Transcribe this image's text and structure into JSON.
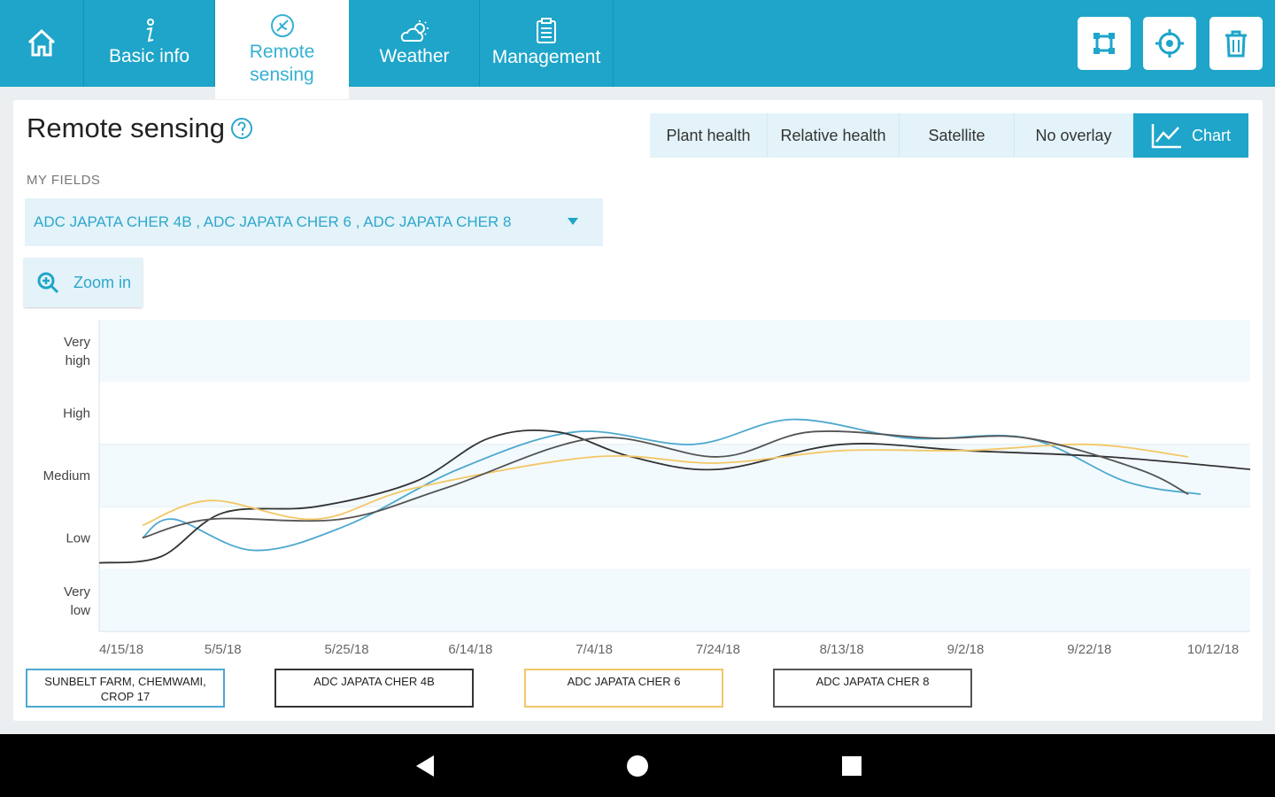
{
  "tabs": [
    {
      "label": "Basic info"
    },
    {
      "label": "Remote sensing"
    },
    {
      "label": "Weather"
    },
    {
      "label": "Management"
    }
  ],
  "page": {
    "title": "Remote sensing",
    "my_fields_label": "MY FIELDS",
    "fields_selected": "ADC JAPATA CHER 4B , ADC JAPATA CHER 6 , ADC JAPATA CHER 8",
    "zoom_label": "Zoom in"
  },
  "overlay_options": [
    "Plant health",
    "Relative health",
    "Satellite",
    "No overlay",
    "Chart"
  ],
  "overlay_selected": "Chart",
  "colors": {
    "accent": "#1ea5c9",
    "series_blue": "#4ea9cf",
    "series_dark": "#333333",
    "series_yellow": "#f3c766",
    "series_grey": "#555555"
  },
  "chart_data": {
    "type": "line",
    "y_categories": [
      "Very low",
      "Low",
      "Medium",
      "High",
      "Very high"
    ],
    "y_tick_labels": [
      {
        "line1": "Very",
        "line2": "high"
      },
      {
        "line1": "High",
        "line2": ""
      },
      {
        "line1": "Medium",
        "line2": ""
      },
      {
        "line1": "Low",
        "line2": ""
      },
      {
        "line1": "Very",
        "line2": "low"
      }
    ],
    "x_tick_labels": [
      "4/15/18",
      "5/5/18",
      "5/25/18",
      "6/14/18",
      "7/4/18",
      "7/24/18",
      "8/13/18",
      "9/2/18",
      "9/22/18",
      "10/12/18"
    ],
    "x_range": [
      "2018-04-15",
      "2018-10-18"
    ],
    "series": [
      {
        "name": "SUNBELT FARM, CHEMWAMI, CROP 17",
        "color": "#4ea9cf",
        "points": [
          [
            "2018-04-22",
            1.5
          ],
          [
            "2018-04-27",
            1.8
          ],
          [
            "2018-05-10",
            1.3
          ],
          [
            "2018-05-25",
            1.7
          ],
          [
            "2018-06-12",
            2.6
          ],
          [
            "2018-07-01",
            3.2
          ],
          [
            "2018-07-20",
            3.0
          ],
          [
            "2018-08-05",
            3.4
          ],
          [
            "2018-08-24",
            3.1
          ],
          [
            "2018-09-12",
            3.1
          ],
          [
            "2018-09-28",
            2.4
          ],
          [
            "2018-10-10",
            2.2
          ]
        ]
      },
      {
        "name": "ADC JAPATA CHER 4B",
        "color": "#333333",
        "points": [
          [
            "2018-04-15",
            1.1
          ],
          [
            "2018-04-25",
            1.2
          ],
          [
            "2018-05-05",
            1.9
          ],
          [
            "2018-05-20",
            2.0
          ],
          [
            "2018-06-05",
            2.4
          ],
          [
            "2018-06-17",
            3.1
          ],
          [
            "2018-06-28",
            3.2
          ],
          [
            "2018-07-10",
            2.8
          ],
          [
            "2018-07-24",
            2.6
          ],
          [
            "2018-08-13",
            3.0
          ],
          [
            "2018-09-02",
            2.9
          ],
          [
            "2018-09-25",
            2.8
          ],
          [
            "2018-10-18",
            2.6
          ]
        ]
      },
      {
        "name": "ADC JAPATA CHER 6",
        "color": "#f3c766",
        "points": [
          [
            "2018-04-22",
            1.7
          ],
          [
            "2018-05-03",
            2.1
          ],
          [
            "2018-05-20",
            1.8
          ],
          [
            "2018-06-05",
            2.3
          ],
          [
            "2018-07-04",
            2.8
          ],
          [
            "2018-07-24",
            2.7
          ],
          [
            "2018-08-13",
            2.9
          ],
          [
            "2018-09-02",
            2.9
          ],
          [
            "2018-09-22",
            3.0
          ],
          [
            "2018-10-08",
            2.8
          ]
        ]
      },
      {
        "name": "ADC JAPATA CHER 8",
        "color": "#555555",
        "points": [
          [
            "2018-04-22",
            1.5
          ],
          [
            "2018-05-03",
            1.8
          ],
          [
            "2018-05-24",
            1.8
          ],
          [
            "2018-06-10",
            2.3
          ],
          [
            "2018-07-04",
            3.1
          ],
          [
            "2018-07-24",
            2.8
          ],
          [
            "2018-08-08",
            3.2
          ],
          [
            "2018-08-28",
            3.1
          ],
          [
            "2018-09-12",
            3.1
          ],
          [
            "2018-09-30",
            2.6
          ],
          [
            "2018-10-08",
            2.2
          ]
        ]
      }
    ]
  },
  "legend": [
    {
      "label": "SUNBELT FARM, CHEMWAMI, CROP 17",
      "color": "#4ea9cf"
    },
    {
      "label": "ADC JAPATA CHER 4B",
      "color": "#333333"
    },
    {
      "label": "ADC JAPATA CHER 6",
      "color": "#f3c766"
    },
    {
      "label": "ADC JAPATA CHER 8",
      "color": "#555555"
    }
  ]
}
